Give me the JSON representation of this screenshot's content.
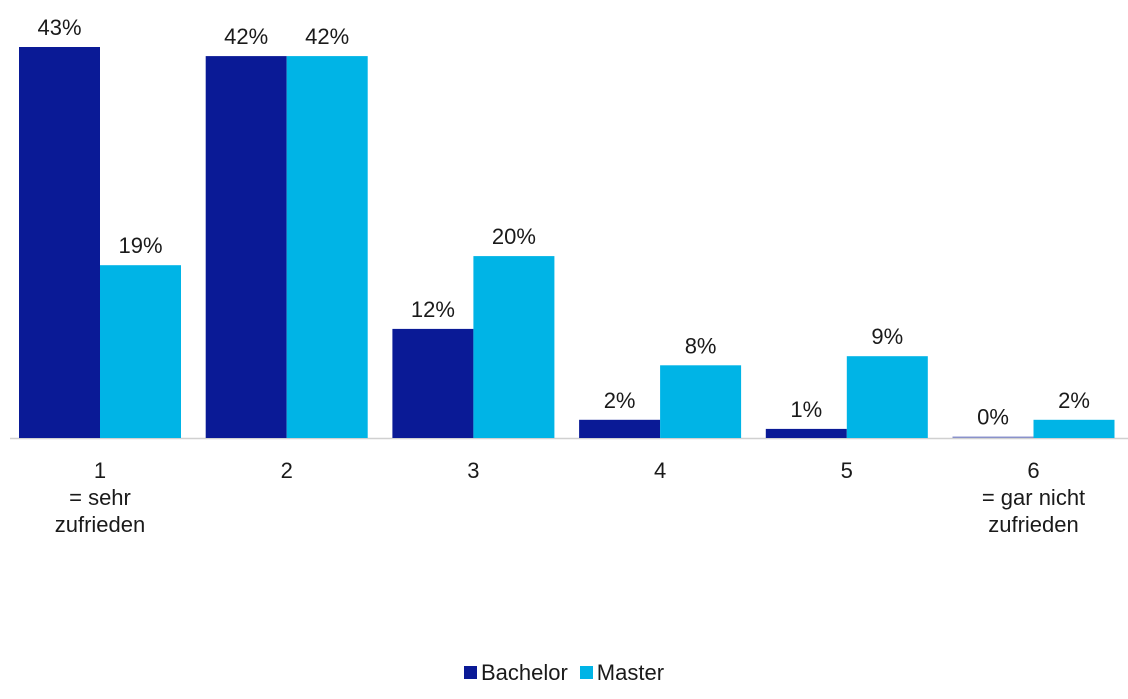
{
  "chart_data": {
    "type": "bar",
    "categories": [
      [
        "1",
        "= sehr",
        "zufrieden"
      ],
      [
        "2"
      ],
      [
        "3"
      ],
      [
        "4"
      ],
      [
        "5"
      ],
      [
        "6",
        "= gar nicht",
        "zufrieden"
      ]
    ],
    "series": [
      {
        "name": "Bachelor",
        "values": [
          43,
          42,
          12,
          2,
          1,
          0
        ],
        "labels": [
          "43%",
          "42%",
          "12%",
          "2%",
          "1%",
          "0%"
        ],
        "color": "#0a1a96"
      },
      {
        "name": "Master",
        "values": [
          19,
          42,
          20,
          8,
          9,
          2
        ],
        "labels": [
          "19%",
          "42%",
          "20%",
          "8%",
          "9%",
          "2%"
        ],
        "color": "#00b4e6"
      }
    ],
    "value_unit": "%",
    "ylim": [
      0,
      43
    ],
    "grid": false,
    "legend_position": "bottom",
    "baseline_color": "#d0d0d0"
  }
}
